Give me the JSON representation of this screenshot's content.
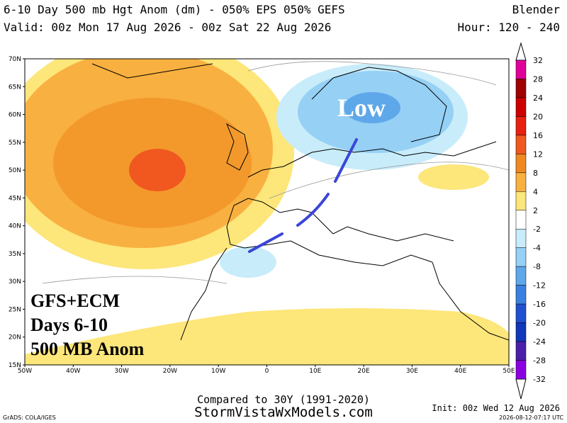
{
  "header": {
    "title": "6-10 Day 500 mb Hgt Anom (dm) - 050% EPS 050% GEFS",
    "model": "Blender",
    "valid": "Valid: 00z Mon 17 Aug 2026 - 00z Sat 22 Aug 2026",
    "hours": "Hour: 120 - 240"
  },
  "map": {
    "lat_labels": [
      "70N",
      "65N",
      "60N",
      "55N",
      "50N",
      "45N",
      "40N",
      "35N",
      "30N",
      "25N",
      "20N",
      "15N"
    ],
    "lon_labels": [
      "50W",
      "40W",
      "30W",
      "20W",
      "10W",
      "0",
      "10E",
      "20E",
      "30E",
      "40E",
      "50E"
    ],
    "low_label": "Low",
    "annotation": [
      "GFS+ECM",
      "Days 6-10",
      "500 MB Anom"
    ]
  },
  "colorbar": {
    "labels": [
      "32",
      "28",
      "24",
      "20",
      "16",
      "12",
      "8",
      "4",
      "2",
      "-2",
      "-4",
      "-8",
      "-12",
      "-16",
      "-20",
      "-24",
      "-28",
      "-32"
    ],
    "colors": [
      "#e0009a",
      "#a00000",
      "#cc0000",
      "#e82010",
      "#f05820",
      "#f08a20",
      "#f8b040",
      "#fde67a",
      "#ffffff",
      "#c8ecfa",
      "#96d0f5",
      "#5ea8ea",
      "#3a80e0",
      "#2050d0",
      "#1038b8",
      "#4a20a8",
      "#8a00e0"
    ]
  },
  "footer": {
    "compared": "Compared to 30Y (1991-2020)",
    "site": "StormVistaWxModels.com",
    "init": "Init: 00z Wed 12 Aug 2026",
    "grads": "GrADS: COLA/IGES",
    "stamp": "2026-08-12-07:17 UTC"
  }
}
